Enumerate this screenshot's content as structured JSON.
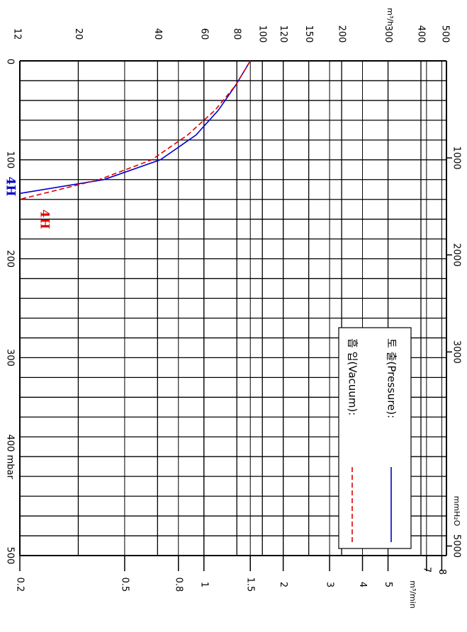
{
  "chart_data": {
    "type": "line",
    "orientation": "rotated 90° clockwise",
    "x_axis": {
      "name": "pressure",
      "scale": "linear",
      "range": [
        0,
        500
      ],
      "primary_unit": "mbar",
      "primary_ticks": [
        {
          "value": 0,
          "label": "0"
        },
        {
          "value": 100,
          "label": "100"
        },
        {
          "value": 200,
          "label": "200"
        },
        {
          "value": 300,
          "label": "300"
        },
        {
          "value": 400,
          "label": "400 mbar"
        },
        {
          "value": 500,
          "label": "500"
        }
      ],
      "secondary_unit": "mmH₂O",
      "secondary_ticks": [
        {
          "value": 98.07,
          "label": "1000"
        },
        {
          "value": 196.13,
          "label": "2000"
        },
        {
          "value": 294.2,
          "label": "3000"
        },
        {
          "value": 490.33,
          "label": "5000"
        }
      ]
    },
    "y_axis": {
      "name": "flow",
      "scale": "log",
      "primary_unit": "m³/h",
      "primary_ticks": [
        {
          "value": 12,
          "label": "12"
        },
        {
          "value": 20,
          "label": "20"
        },
        {
          "value": 40,
          "label": "40"
        },
        {
          "value": 60,
          "label": "60"
        },
        {
          "value": 80,
          "label": "80"
        },
        {
          "value": 100,
          "label": "100"
        },
        {
          "value": 120,
          "label": "120"
        },
        {
          "value": 150,
          "label": "150"
        },
        {
          "value": 200,
          "label": "200"
        },
        {
          "value": 300,
          "label": "300"
        },
        {
          "value": 400,
          "label": "400"
        },
        {
          "value": 500,
          "label": "500"
        }
      ],
      "secondary_unit": "m³/min",
      "secondary_ticks": [
        {
          "value": 0.2,
          "label": "0.2"
        },
        {
          "value": 0.5,
          "label": "0.5"
        },
        {
          "value": 0.8,
          "label": "0.8"
        },
        {
          "value": 1,
          "label": "1"
        },
        {
          "value": 1.5,
          "label": "1.5"
        },
        {
          "value": 2,
          "label": "2"
        },
        {
          "value": 3,
          "label": "3"
        },
        {
          "value": 4,
          "label": "4"
        },
        {
          "value": 5,
          "label": "5"
        },
        {
          "value": 7,
          "label": "7"
        },
        {
          "value": 8,
          "label": "8"
        }
      ]
    },
    "series": [
      {
        "name": "토 출(Pressure):",
        "color": "#0000cc",
        "style": "solid",
        "end_label": "4H",
        "points": [
          {
            "pressure": 0,
            "flow": 90
          },
          {
            "pressure": 25,
            "flow": 79
          },
          {
            "pressure": 50,
            "flow": 68
          },
          {
            "pressure": 75,
            "flow": 56
          },
          {
            "pressure": 100,
            "flow": 41
          },
          {
            "pressure": 120,
            "flow": 25
          },
          {
            "pressure": 134,
            "flow": 12
          }
        ]
      },
      {
        "name": "흡 입(Vacuum):",
        "color": "#dd0000",
        "style": "dashed",
        "end_label": "4H",
        "points": [
          {
            "pressure": 0,
            "flow": 90
          },
          {
            "pressure": 25,
            "flow": 79
          },
          {
            "pressure": 50,
            "flow": 66
          },
          {
            "pressure": 75,
            "flow": 52
          },
          {
            "pressure": 100,
            "flow": 38
          },
          {
            "pressure": 120,
            "flow": 24
          },
          {
            "pressure": 140,
            "flow": 12
          }
        ]
      }
    ],
    "grid": true,
    "legend_position": "bottom-right"
  }
}
